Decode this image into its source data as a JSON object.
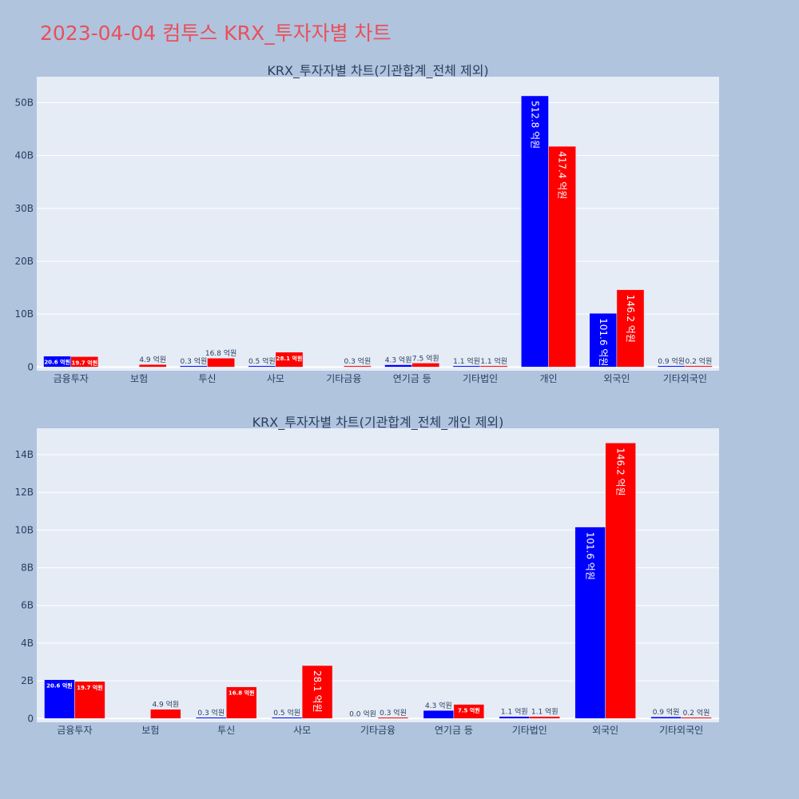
{
  "page_title": "2023-04-04 컴투스 KRX_투자자별 차트",
  "colors": {
    "buy": "#0000ff",
    "sell": "#ff0000",
    "plot_bg": "#e5ecf6",
    "page_bg": "#b0c4de",
    "title": "#e8505b"
  },
  "chart_data": [
    {
      "type": "bar",
      "title": "KRX_투자자별 차트(기관합계_전체 제외)",
      "categories": [
        "금융투자",
        "보험",
        "투신",
        "사모",
        "기타금융",
        "연기금 등",
        "기타법인",
        "개인",
        "외국인",
        "기타외국인"
      ],
      "series": [
        {
          "color": "#0000ff",
          "values": [
            2.06,
            0,
            0.03,
            0.05,
            0,
            0.43,
            0.11,
            51.28,
            10.16,
            0.09
          ],
          "labels": [
            "20.6 억원",
            "",
            "0.3 억원",
            "0.5 억원",
            "",
            "4.3 억원",
            "1.1 억원",
            "512.8 억원",
            "101.6 억원",
            "0.9 억원"
          ]
        },
        {
          "color": "#ff0000",
          "values": [
            1.97,
            0.49,
            1.68,
            2.81,
            0.03,
            0.75,
            0.11,
            41.74,
            14.62,
            0.02
          ],
          "labels": [
            "19.7 억원",
            "4.9 억원",
            "16.8 억원",
            "28.1 억원",
            "0.3 억원",
            "7.5 억원",
            "1.1 억원",
            "417.4 억원",
            "146.2 억원",
            "0.2 억원"
          ]
        }
      ],
      "yticks": [
        "0",
        "10B",
        "20B",
        "30B",
        "40B",
        "50B"
      ],
      "ytick_values": [
        0,
        10,
        20,
        30,
        40,
        50
      ],
      "ylim": [
        -0.7,
        54.9
      ],
      "value_unit": "B",
      "grid": true
    },
    {
      "type": "bar",
      "title": "KRX_투자자별 차트(기관합계_전체_개인 제외)",
      "categories": [
        "금융투자",
        "보험",
        "투신",
        "사모",
        "기타금융",
        "연기금 등",
        "기타법인",
        "외국인",
        "기타외국인"
      ],
      "series": [
        {
          "color": "#0000ff",
          "values": [
            2.06,
            0,
            0.03,
            0.05,
            0,
            0.43,
            0.11,
            10.16,
            0.09
          ],
          "labels": [
            "20.6 억원",
            "",
            "0.3 억원",
            "0.5 억원",
            "0.0 억원",
            "4.3 억원",
            "1.1 억원",
            "101.6 억원",
            "0.9 억원"
          ]
        },
        {
          "color": "#ff0000",
          "values": [
            1.97,
            0.49,
            1.68,
            2.81,
            0.03,
            0.75,
            0.11,
            14.62,
            0.02
          ],
          "labels": [
            "19.7 억원",
            "4.9 억원",
            "16.8 억원",
            "28.1 억원",
            "0.3 억원",
            "7.5 억원",
            "1.1 억원",
            "146.2 억원",
            "0.2 억원"
          ]
        }
      ],
      "yticks": [
        "0",
        "2B",
        "4B",
        "6B",
        "8B",
        "10B",
        "12B",
        "14B"
      ],
      "ytick_values": [
        0,
        2,
        4,
        6,
        8,
        10,
        12,
        14
      ],
      "ylim": [
        -0.2,
        15.4
      ],
      "value_unit": "B",
      "grid": true
    }
  ]
}
